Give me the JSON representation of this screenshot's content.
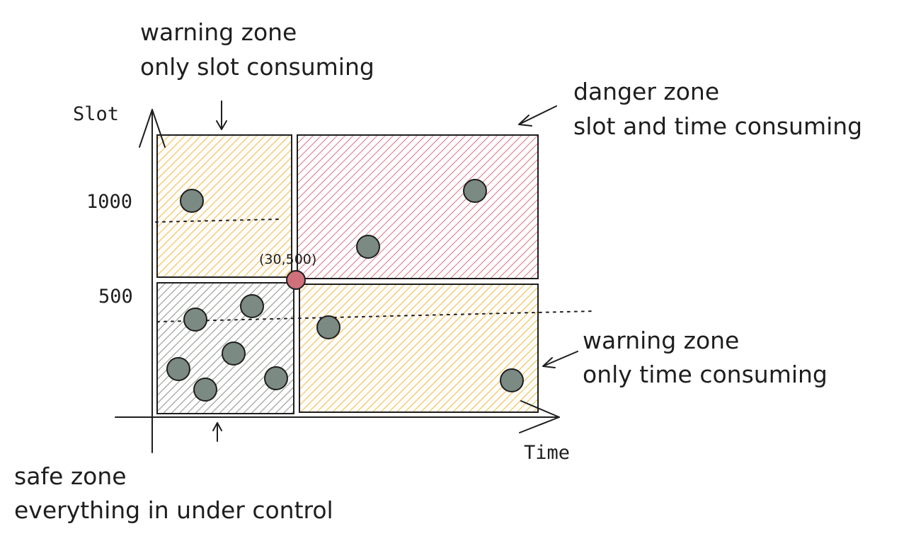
{
  "colors": {
    "warning": "#f2b737",
    "danger": "#d9727c",
    "safe": "#8a8f88",
    "point": "#7b8a83",
    "threshold_point": "#d0707a",
    "ink": "#1e1e1e"
  },
  "axes": {
    "y_label": "Slot",
    "x_label": "Time",
    "y_tick_1000": "1000",
    "y_tick_500": "500"
  },
  "threshold": {
    "label": "(30,500)"
  },
  "annotations": {
    "warning_slot": {
      "line1": "warning zone",
      "line2": "only slot consuming"
    },
    "danger": {
      "line1": "danger zone",
      "line2": "slot and time consuming"
    },
    "warning_time": {
      "line1": "warning zone",
      "line2": "only time consuming"
    },
    "safe": {
      "line1": "safe zone",
      "line2": "everything in under control"
    }
  },
  "icons": {
    "arrow": "arrow-icon"
  }
}
